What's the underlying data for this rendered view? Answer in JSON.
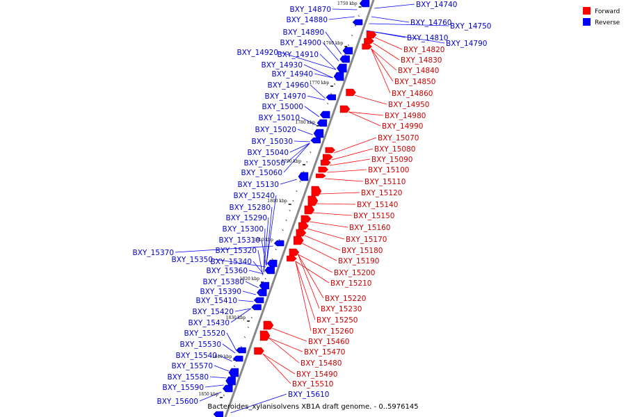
{
  "caption": "Bacteroides_xylanisolvens XB1A draft genome. - 0..5976145",
  "legend": [
    {
      "label": "Forward",
      "color": "#ff0000"
    },
    {
      "label": "Reverse",
      "color": "#0000ff"
    }
  ],
  "ticks": [
    "1750 kbp",
    "1760 kbp",
    "1770 kbp",
    "1780 kbp",
    "1790 kbp",
    "1800 kbp",
    "1810 kbp",
    "1820 kbp",
    "1830 kbp",
    "1840 kbp",
    "1850 kbp"
  ],
  "forward_genes": [
    "BXY_14820",
    "BXY_14830",
    "BXY_14840",
    "BXY_14850",
    "BXY_14860",
    "BXY_14950",
    "BXY_14980",
    "BXY_14990",
    "BXY_15070",
    "BXY_15080",
    "BXY_15090",
    "BXY_15100",
    "BXY_15110",
    "BXY_15120",
    "BXY_15140",
    "BXY_15150",
    "BXY_15160",
    "BXY_15170",
    "BXY_15180",
    "BXY_15190",
    "BXY_15200",
    "BXY_15210",
    "BXY_15220",
    "BXY_15230",
    "BXY_15250",
    "BXY_15260",
    "BXY_15460",
    "BXY_15470",
    "BXY_15480",
    "BXY_15490",
    "BXY_15510"
  ],
  "reverse_genes": [
    "BXY_14740",
    "BXY_14760",
    "BXY_14750",
    "BXY_14810",
    "BXY_14790",
    "BXY_14870",
    "BXY_14880",
    "BXY_14890",
    "BXY_14900",
    "BXY_14920",
    "BXY_14910",
    "BXY_14930",
    "BXY_14940",
    "BXY_14960",
    "BXY_14970",
    "BXY_15000",
    "BXY_15010",
    "BXY_15020",
    "BXY_15030",
    "BXY_15040",
    "BXY_15050",
    "BXY_15060",
    "BXY_15130",
    "BXY_15240",
    "BXY_15280",
    "BXY_15290",
    "BXY_15300",
    "BXY_15310",
    "BXY_15320",
    "BXY_15370",
    "BXY_15350",
    "BXY_15340",
    "BXY_15360",
    "BXY_15380",
    "BXY_15390",
    "BXY_15410",
    "BXY_15420",
    "BXY_15430",
    "BXY_15520",
    "BXY_15530",
    "BXY_15540",
    "BXY_15570",
    "BXY_15580",
    "BXY_15590",
    "BXY_15600",
    "BXY_15610"
  ]
}
